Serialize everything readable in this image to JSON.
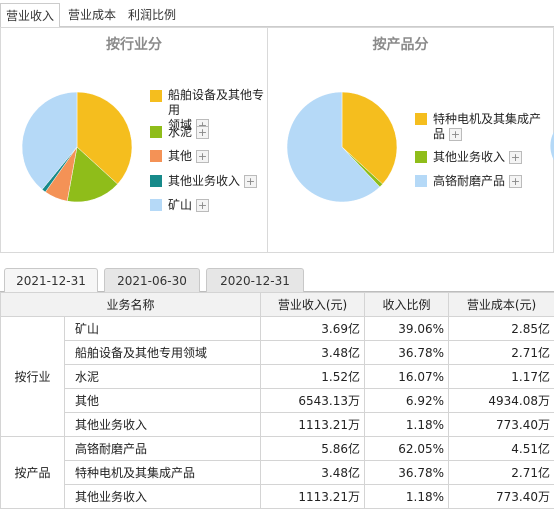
{
  "top_tabs": [
    {
      "label": "营业收入",
      "active": true
    },
    {
      "label": "营业成本",
      "active": false
    },
    {
      "label": "利润比例",
      "active": false
    }
  ],
  "panels": [
    {
      "title": "按行业分",
      "slices": [
        {
          "label": "船舶设备及其他专用领域",
          "label_lines": [
            "船舶设备及其他专用",
            "领域"
          ],
          "pct": 36.78,
          "color": "#f5be1e"
        },
        {
          "label": "水泥",
          "label_lines": [
            "水泥"
          ],
          "pct": 16.07,
          "color": "#8fbd1a"
        },
        {
          "label": "其他",
          "label_lines": [
            "其他"
          ],
          "pct": 6.92,
          "color": "#f49256"
        },
        {
          "label": "其他业务收入",
          "label_lines": [
            "其他业务收入"
          ],
          "pct": 1.18,
          "color": "#178a8a"
        },
        {
          "label": "矿山",
          "label_lines": [
            "矿山"
          ],
          "pct": 39.06,
          "color": "#b5d9f7"
        }
      ]
    },
    {
      "title": "按产品分",
      "slices": [
        {
          "label": "特种电机及其集成产品",
          "label_lines": [
            "特种电机及其集成产",
            "品"
          ],
          "pct": 36.78,
          "color": "#f5be1e"
        },
        {
          "label": "其他业务收入",
          "label_lines": [
            "其他业务收入"
          ],
          "pct": 1.18,
          "color": "#8fbd1a"
        },
        {
          "label": "高铬耐磨产品",
          "label_lines": [
            "高铬耐磨产品"
          ],
          "pct": 62.05,
          "color": "#b5d9f7"
        }
      ]
    }
  ],
  "expand_glyph": "+",
  "date_tabs": [
    {
      "label": "2021-12-31",
      "active": true
    },
    {
      "label": "2021-06-30",
      "active": false
    },
    {
      "label": "2020-12-31",
      "active": false
    }
  ],
  "table": {
    "headers": [
      "业务名称",
      "营业收入(元)",
      "收入比例",
      "营业成本(元)"
    ],
    "groups": [
      {
        "label": "按行业",
        "rows": [
          {
            "name": "矿山",
            "revenue": "3.69亿",
            "ratio": "39.06%",
            "cost": "2.85亿"
          },
          {
            "name": "船舶设备及其他专用领域",
            "revenue": "3.48亿",
            "ratio": "36.78%",
            "cost": "2.71亿"
          },
          {
            "name": "水泥",
            "revenue": "1.52亿",
            "ratio": "16.07%",
            "cost": "1.17亿"
          },
          {
            "name": "其他",
            "revenue": "6543.13万",
            "ratio": "6.92%",
            "cost": "4934.08万"
          },
          {
            "name": "其他业务收入",
            "revenue": "1113.21万",
            "ratio": "1.18%",
            "cost": "773.40万"
          }
        ]
      },
      {
        "label": "按产品",
        "rows": [
          {
            "name": "高铬耐磨产品",
            "revenue": "5.86亿",
            "ratio": "62.05%",
            "cost": "4.51亿"
          },
          {
            "name": "特种电机及其集成产品",
            "revenue": "3.48亿",
            "ratio": "36.78%",
            "cost": "2.71亿"
          },
          {
            "name": "其他业务收入",
            "revenue": "1113.21万",
            "ratio": "1.18%",
            "cost": "773.40万"
          }
        ]
      }
    ]
  }
}
